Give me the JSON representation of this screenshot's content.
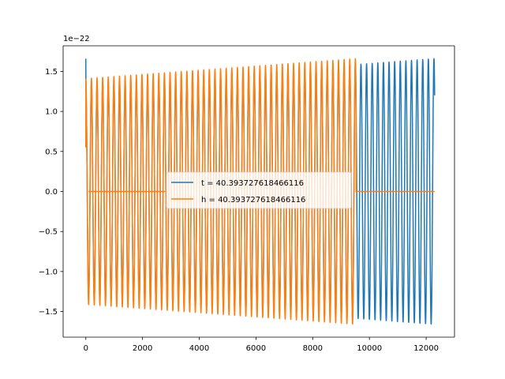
{
  "chart_data": {
    "type": "line",
    "title": "",
    "xlabel": "",
    "ylabel": "",
    "xlim": [
      -800,
      13000
    ],
    "ylim": [
      -1.82,
      1.82
    ],
    "y_scale_label": "1e−22",
    "grid": false,
    "legend_position": "center",
    "xticks": [
      {
        "value": 0,
        "label": "0"
      },
      {
        "value": 2000,
        "label": "2000"
      },
      {
        "value": 4000,
        "label": "4000"
      },
      {
        "value": 6000,
        "label": "6000"
      },
      {
        "value": 8000,
        "label": "8000"
      },
      {
        "value": 10000,
        "label": "10000"
      },
      {
        "value": 12000,
        "label": "12000"
      }
    ],
    "yticks": [
      {
        "value": 1.5,
        "label": "1.5"
      },
      {
        "value": 1.0,
        "label": "1.0"
      },
      {
        "value": 0.5,
        "label": "0.5"
      },
      {
        "value": 0.0,
        "label": "0.0"
      },
      {
        "value": -0.5,
        "label": "−0.5"
      },
      {
        "value": -1.0,
        "label": "−1.0"
      },
      {
        "value": -1.5,
        "label": "−1.5"
      }
    ],
    "series": [
      {
        "name": "t = 40.393727618466116",
        "color": "#1f77b4",
        "start_x": 0,
        "end_x": 12300,
        "period": 198,
        "amplitude_start": 1.33,
        "amplitude_end": 1.66,
        "initial_value": 1.66,
        "trailing_zero_to": null
      },
      {
        "name": "h = 40.393727618466116",
        "color": "#ff7f0e",
        "start_x": 0,
        "end_x": 9530,
        "period": 198,
        "amplitude_start": 1.41,
        "amplitude_end": 1.66,
        "initial_value": 0.55,
        "trailing_zero_to": 12300
      }
    ]
  }
}
